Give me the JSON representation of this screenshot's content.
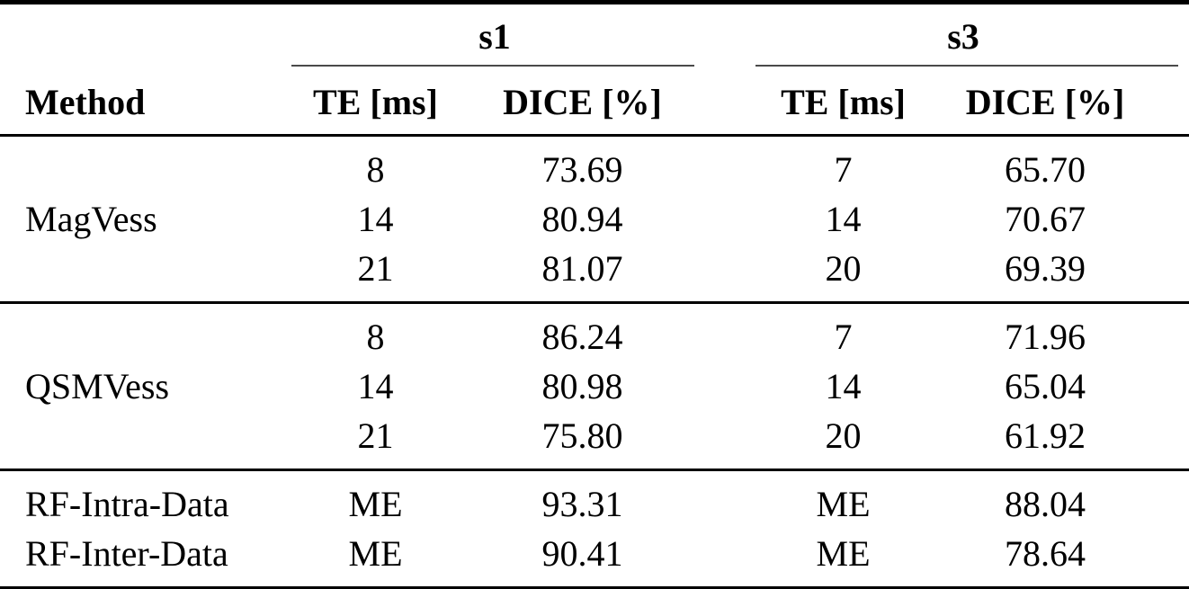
{
  "table": {
    "header": {
      "method": "Method",
      "groups": [
        {
          "label": "s1",
          "columns": [
            "TE [ms]",
            "DICE [%]"
          ]
        },
        {
          "label": "s3",
          "columns": [
            "TE [ms]",
            "DICE [%]"
          ]
        }
      ]
    },
    "sections": [
      {
        "method": "MagVess",
        "rows": [
          [
            "8",
            "73.69",
            "7",
            "65.70"
          ],
          [
            "14",
            "80.94",
            "14",
            "70.67"
          ],
          [
            "21",
            "81.07",
            "20",
            "69.39"
          ]
        ]
      },
      {
        "method": "QSMVess",
        "rows": [
          [
            "8",
            "86.24",
            "7",
            "71.96"
          ],
          [
            "14",
            "80.98",
            "14",
            "65.04"
          ],
          [
            "21",
            "75.80",
            "20",
            "61.92"
          ]
        ]
      },
      {
        "method": "RF-Intra-Data",
        "rows": [
          [
            "ME",
            "93.31",
            "ME",
            "88.04"
          ]
        ]
      },
      {
        "method": "RF-Inter-Data",
        "rows": [
          [
            "ME",
            "90.41",
            "ME",
            "78.64"
          ]
        ]
      }
    ],
    "colors": {
      "rule": "#000000",
      "cmidrule": "#4a4a4a",
      "background": "#ffffff",
      "text": "#000000"
    }
  }
}
